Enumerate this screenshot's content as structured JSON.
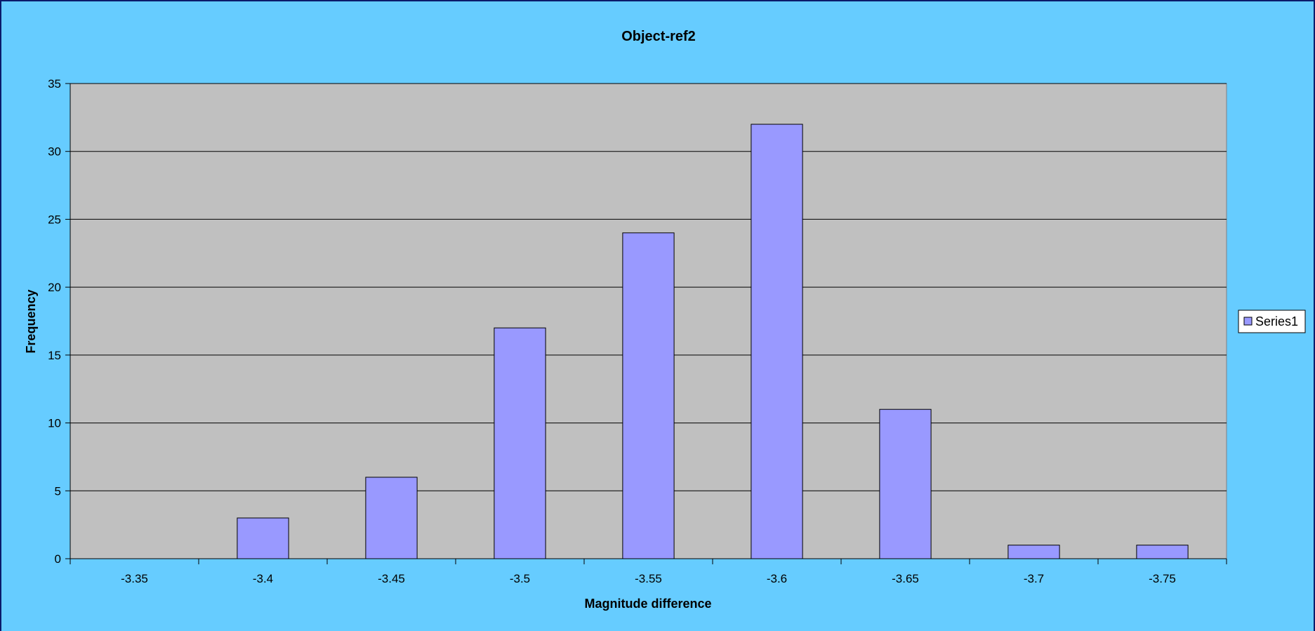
{
  "chart_data": {
    "type": "bar",
    "title": "Object-ref2",
    "xlabel": "Magnitude difference",
    "ylabel": "Frequency",
    "categories": [
      "-3.35",
      "-3.4",
      "-3.45",
      "-3.5",
      "-3.55",
      "-3.6",
      "-3.65",
      "-3.7",
      "-3.75"
    ],
    "series": [
      {
        "name": "Series1",
        "values": [
          0,
          3,
          6,
          17,
          24,
          32,
          11,
          1,
          1
        ]
      }
    ],
    "ylim": [
      0,
      35
    ],
    "yticks": [
      0,
      5,
      10,
      15,
      20,
      25,
      30,
      35
    ],
    "grid": true,
    "legend_position": "right",
    "colors": {
      "background": "#66ccff",
      "plot_area": "#c0c0c0",
      "bar_fill": "#9999ff",
      "bar_stroke": "#000000",
      "gridline": "#000000"
    }
  }
}
